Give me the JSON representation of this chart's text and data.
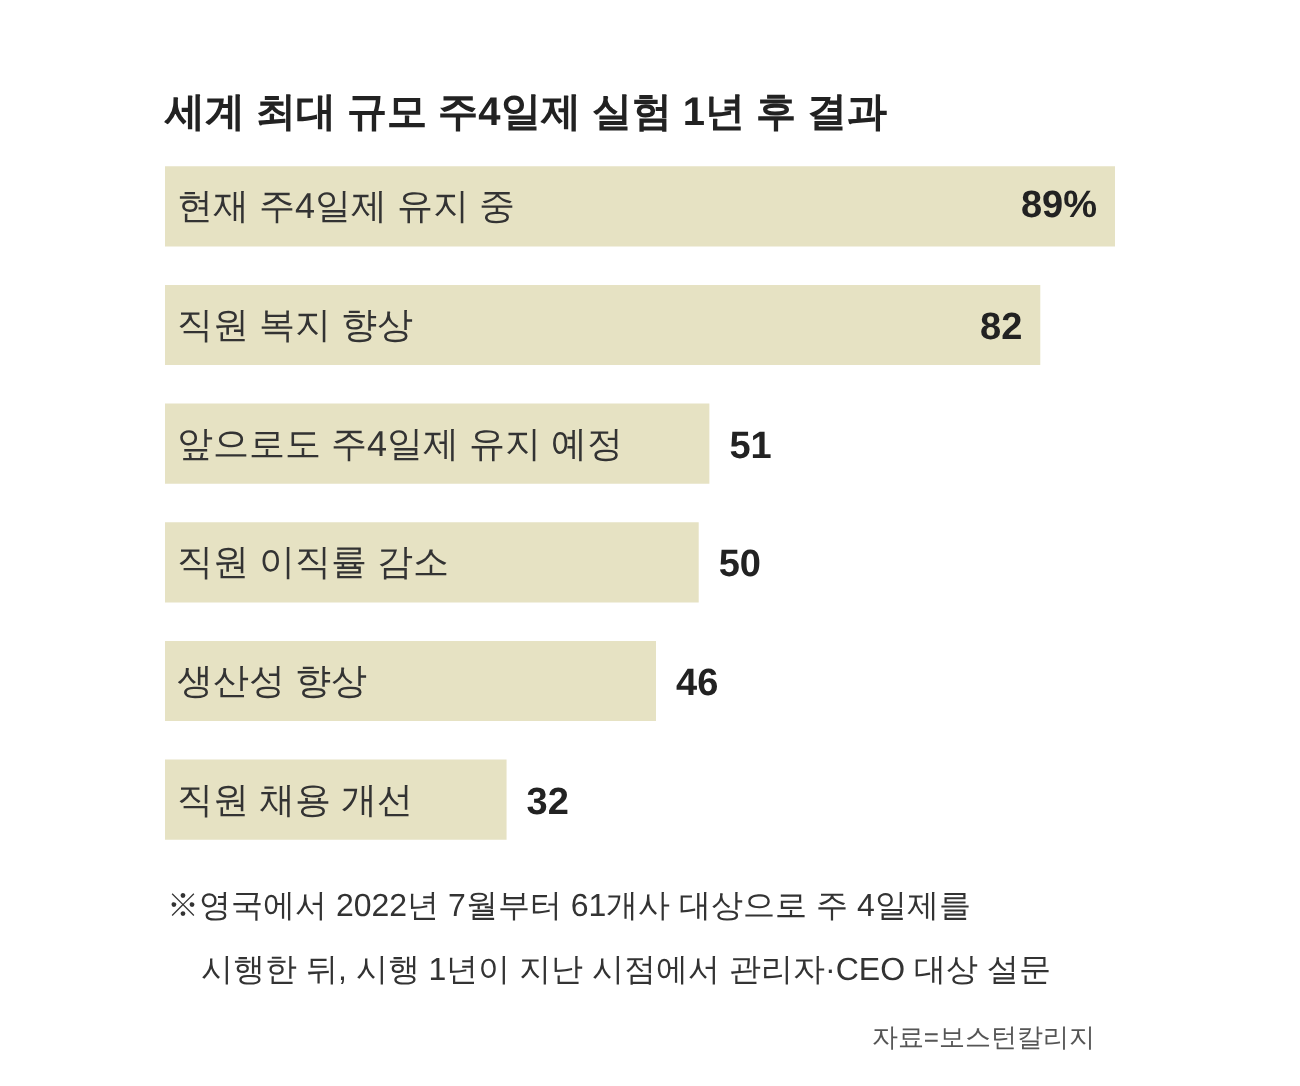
{
  "chart_data": {
    "type": "bar",
    "orientation": "horizontal",
    "title": "세계 최대 규모 주4일제 실험 1년 후 결과",
    "categories": [
      "현재 주4일제 유지 중",
      "직원 복지 향상",
      "앞으로도 주4일제 유지 예정",
      "직원 이직률 감소",
      "생산성 향상",
      "직원 채용 개선"
    ],
    "values": [
      89,
      82,
      51,
      50,
      46,
      32
    ],
    "value_labels": [
      "89%",
      "82",
      "51",
      "50",
      "46",
      "32"
    ],
    "color": "#e6e2c3",
    "annotations": [
      "※영국에서 2022년 7월부터 61개사 대상으로 주 4일제를\n시행한 뒤, 시행 1년이 지난 시점에서 관리자·CEO 대상 설문",
      "자료=보스턴칼리지"
    ]
  }
}
